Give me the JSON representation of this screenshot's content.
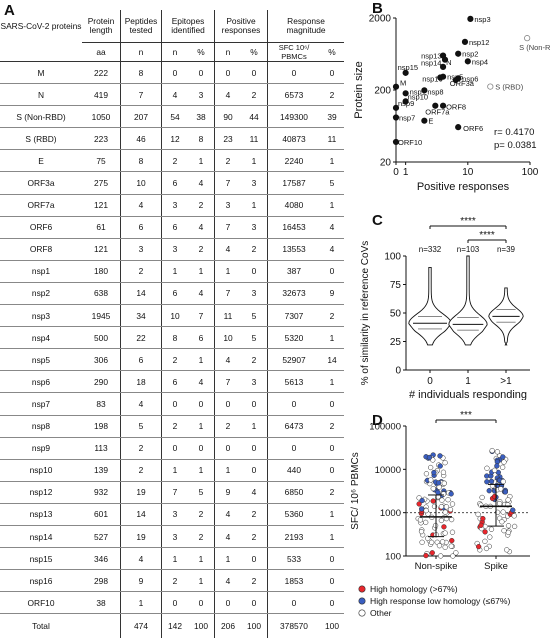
{
  "panel_a": {
    "letter": "A",
    "headers": {
      "proteins": "SARS-CoV-2 proteins",
      "protein_length": "Protein length",
      "peptides_tested": "Peptides tested",
      "epitopes_identified": "Epitopes identified",
      "positive_responses": "Positive responses",
      "response_magnitude": "Response magnitude"
    },
    "subheaders": [
      "aa",
      "n",
      "n",
      "%",
      "n",
      "%",
      "SFC 10⁶/ PBMCs",
      "%"
    ],
    "rows": [
      {
        "name": "M",
        "len": "222",
        "pep": "8",
        "epi_n": "0",
        "epi_p": "0",
        "pos_n": "0",
        "pos_p": "0",
        "mag": "0",
        "mag_p": "0"
      },
      {
        "name": "N",
        "len": "419",
        "pep": "7",
        "epi_n": "4",
        "epi_p": "3",
        "pos_n": "4",
        "pos_p": "2",
        "mag": "6573",
        "mag_p": "2"
      },
      {
        "name": "S (Non-RBD)",
        "len": "1050",
        "pep": "207",
        "epi_n": "54",
        "epi_p": "38",
        "pos_n": "90",
        "pos_p": "44",
        "mag": "149300",
        "mag_p": "39"
      },
      {
        "name": "S (RBD)",
        "len": "223",
        "pep": "46",
        "epi_n": "12",
        "epi_p": "8",
        "pos_n": "23",
        "pos_p": "11",
        "mag": "40873",
        "mag_p": "11"
      },
      {
        "name": "E",
        "len": "75",
        "pep": "8",
        "epi_n": "2",
        "epi_p": "1",
        "pos_n": "2",
        "pos_p": "1",
        "mag": "2240",
        "mag_p": "1"
      },
      {
        "name": "ORF3a",
        "len": "275",
        "pep": "10",
        "epi_n": "6",
        "epi_p": "4",
        "pos_n": "7",
        "pos_p": "3",
        "mag": "17587",
        "mag_p": "5"
      },
      {
        "name": "ORF7a",
        "len": "121",
        "pep": "4",
        "epi_n": "3",
        "epi_p": "2",
        "pos_n": "3",
        "pos_p": "1",
        "mag": "4080",
        "mag_p": "1"
      },
      {
        "name": "ORF6",
        "len": "61",
        "pep": "6",
        "epi_n": "6",
        "epi_p": "4",
        "pos_n": "7",
        "pos_p": "3",
        "mag": "16453",
        "mag_p": "4"
      },
      {
        "name": "ORF8",
        "len": "121",
        "pep": "3",
        "epi_n": "3",
        "epi_p": "2",
        "pos_n": "4",
        "pos_p": "2",
        "mag": "13553",
        "mag_p": "4"
      },
      {
        "name": "nsp1",
        "len": "180",
        "pep": "2",
        "epi_n": "1",
        "epi_p": "1",
        "pos_n": "1",
        "pos_p": "0",
        "mag": "387",
        "mag_p": "0"
      },
      {
        "name": "nsp2",
        "len": "638",
        "pep": "14",
        "epi_n": "6",
        "epi_p": "4",
        "pos_n": "7",
        "pos_p": "3",
        "mag": "32673",
        "mag_p": "9"
      },
      {
        "name": "nsp3",
        "len": "1945",
        "pep": "34",
        "epi_n": "10",
        "epi_p": "7",
        "pos_n": "11",
        "pos_p": "5",
        "mag": "7307",
        "mag_p": "2"
      },
      {
        "name": "nsp4",
        "len": "500",
        "pep": "22",
        "epi_n": "8",
        "epi_p": "6",
        "pos_n": "10",
        "pos_p": "5",
        "mag": "5320",
        "mag_p": "1"
      },
      {
        "name": "nsp5",
        "len": "306",
        "pep": "6",
        "epi_n": "2",
        "epi_p": "1",
        "pos_n": "4",
        "pos_p": "2",
        "mag": "52907",
        "mag_p": "14"
      },
      {
        "name": "nsp6",
        "len": "290",
        "pep": "18",
        "epi_n": "6",
        "epi_p": "4",
        "pos_n": "7",
        "pos_p": "3",
        "mag": "5613",
        "mag_p": "1"
      },
      {
        "name": "nsp7",
        "len": "83",
        "pep": "4",
        "epi_n": "0",
        "epi_p": "0",
        "pos_n": "0",
        "pos_p": "0",
        "mag": "0",
        "mag_p": "0"
      },
      {
        "name": "nsp8",
        "len": "198",
        "pep": "5",
        "epi_n": "2",
        "epi_p": "1",
        "pos_n": "2",
        "pos_p": "1",
        "mag": "6473",
        "mag_p": "2"
      },
      {
        "name": "nsp9",
        "len": "113",
        "pep": "2",
        "epi_n": "0",
        "epi_p": "0",
        "pos_n": "0",
        "pos_p": "0",
        "mag": "0",
        "mag_p": "0"
      },
      {
        "name": "nsp10",
        "len": "139",
        "pep": "2",
        "epi_n": "1",
        "epi_p": "1",
        "pos_n": "1",
        "pos_p": "0",
        "mag": "440",
        "mag_p": "0"
      },
      {
        "name": "nsp12",
        "len": "932",
        "pep": "19",
        "epi_n": "7",
        "epi_p": "5",
        "pos_n": "9",
        "pos_p": "4",
        "mag": "6850",
        "mag_p": "2"
      },
      {
        "name": "nsp13",
        "len": "601",
        "pep": "14",
        "epi_n": "3",
        "epi_p": "2",
        "pos_n": "4",
        "pos_p": "2",
        "mag": "5360",
        "mag_p": "1"
      },
      {
        "name": "nsp14",
        "len": "527",
        "pep": "19",
        "epi_n": "3",
        "epi_p": "2",
        "pos_n": "4",
        "pos_p": "2",
        "mag": "2193",
        "mag_p": "1"
      },
      {
        "name": "nsp15",
        "len": "346",
        "pep": "4",
        "epi_n": "1",
        "epi_p": "1",
        "pos_n": "1",
        "pos_p": "0",
        "mag": "533",
        "mag_p": "0"
      },
      {
        "name": "nsp16",
        "len": "298",
        "pep": "9",
        "epi_n": "2",
        "epi_p": "1",
        "pos_n": "4",
        "pos_p": "2",
        "mag": "1853",
        "mag_p": "0"
      },
      {
        "name": "ORF10",
        "len": "38",
        "pep": "1",
        "epi_n": "0",
        "epi_p": "0",
        "pos_n": "0",
        "pos_p": "0",
        "mag": "0",
        "mag_p": "0"
      }
    ],
    "total": {
      "name": "Total",
      "len": "",
      "pep": "474",
      "epi_n": "142",
      "epi_p": "100",
      "pos_n": "206",
      "pos_p": "100",
      "mag": "378570",
      "mag_p": "100"
    }
  },
  "chart_data": [
    {
      "panel": "B",
      "type": "scatter",
      "xlabel": "Positive responses",
      "ylabel": "Protein size",
      "x_scale": "log",
      "y_scale": "log",
      "xlim": [
        0.7,
        100
      ],
      "ylim": [
        20,
        2000
      ],
      "x_ticks": [
        "0",
        "1",
        "10",
        "100"
      ],
      "y_ticks": [
        "20",
        "200",
        "2000"
      ],
      "stats": [
        "r= 0.4170",
        "p= 0.0381"
      ],
      "points": [
        {
          "label": "nsp3",
          "x": 11,
          "y": 1945,
          "style": "filled"
        },
        {
          "label": "S (Non-RBD)",
          "x": 90,
          "y": 1050,
          "style": "open"
        },
        {
          "label": "nsp12",
          "x": 9,
          "y": 932,
          "style": "filled"
        },
        {
          "label": "nsp2",
          "x": 7,
          "y": 638,
          "style": "filled"
        },
        {
          "label": "nsp13",
          "x": 4,
          "y": 601,
          "style": "filled"
        },
        {
          "label": "nsp14",
          "x": 4.3,
          "y": 527,
          "style": "filled"
        },
        {
          "label": "nsp4",
          "x": 10,
          "y": 500,
          "style": "filled"
        },
        {
          "label": "N",
          "x": 4,
          "y": 419,
          "style": "filled"
        },
        {
          "label": "nsp15",
          "x": 1,
          "y": 346,
          "style": "filled"
        },
        {
          "label": "nsp5",
          "x": 4,
          "y": 306,
          "style": "filled"
        },
        {
          "label": "nsp16",
          "x": 3.6,
          "y": 298,
          "style": "filled"
        },
        {
          "label": "nsp6",
          "x": 7,
          "y": 290,
          "style": "filled"
        },
        {
          "label": "ORF3a",
          "x": 6.4,
          "y": 275,
          "style": "filled"
        },
        {
          "label": "S (RBD)",
          "x": 23,
          "y": 223,
          "style": "open"
        },
        {
          "label": "M",
          "x": 0.7,
          "y": 222,
          "style": "filled"
        },
        {
          "label": "nsp8",
          "x": 2,
          "y": 198,
          "style": "filled"
        },
        {
          "label": "nsp1",
          "x": 1,
          "y": 180,
          "style": "filled"
        },
        {
          "label": "nsp10",
          "x": 1,
          "y": 139,
          "style": "filled"
        },
        {
          "label": "ORF7a",
          "x": 3,
          "y": 121,
          "style": "filled"
        },
        {
          "label": "ORF8",
          "x": 4,
          "y": 121,
          "style": "filled"
        },
        {
          "label": "nsp9",
          "x": 0.7,
          "y": 113,
          "style": "filled"
        },
        {
          "label": "nsp7",
          "x": 0.7,
          "y": 83,
          "style": "filled"
        },
        {
          "label": "E",
          "x": 2,
          "y": 75,
          "style": "filled"
        },
        {
          "label": "ORF6",
          "x": 7,
          "y": 61,
          "style": "filled"
        },
        {
          "label": "ORF10",
          "x": 0.7,
          "y": 38,
          "style": "filled"
        }
      ]
    },
    {
      "panel": "C",
      "type": "violin",
      "xlabel": "# individuals responding",
      "ylabel": "% of similarity in reference CoVs",
      "ylim": [
        0,
        100
      ],
      "y_ticks": [
        "0",
        "25",
        "50",
        "75",
        "100"
      ],
      "categories": [
        "0",
        "1",
        ">1"
      ],
      "counts": [
        "n=332",
        "n=103",
        "n=39"
      ],
      "medians": [
        41,
        40,
        47
      ],
      "significance": [
        {
          "from": "0",
          "to": ">1",
          "label": "****"
        },
        {
          "from": "1",
          "to": ">1",
          "label": "****"
        }
      ]
    },
    {
      "panel": "D",
      "type": "scatter",
      "xlabel": "",
      "ylabel": "SFC/ 10⁶ PBMCs",
      "y_scale": "log",
      "ylim": [
        100,
        100000
      ],
      "y_ticks": [
        "100",
        "1000",
        "10000",
        "100000"
      ],
      "categories": [
        "Non-spike",
        "Spike"
      ],
      "threshold": 1000,
      "medians": [
        800,
        1400
      ],
      "significance": [
        {
          "from": "Non-spike",
          "to": "Spike",
          "label": "***"
        }
      ],
      "legend": [
        {
          "label": "High homology (>67%)",
          "color": "#e8262c"
        },
        {
          "label": "High response low homology (≤67%)",
          "color": "#3a5ec0"
        },
        {
          "label": "Other",
          "color": "#ffffff"
        }
      ]
    }
  ],
  "panel_letters": {
    "b": "B",
    "c": "C",
    "d": "D"
  },
  "colors": {
    "red": "#e8262c",
    "blue": "#3a5ec0",
    "text": "#111111"
  }
}
